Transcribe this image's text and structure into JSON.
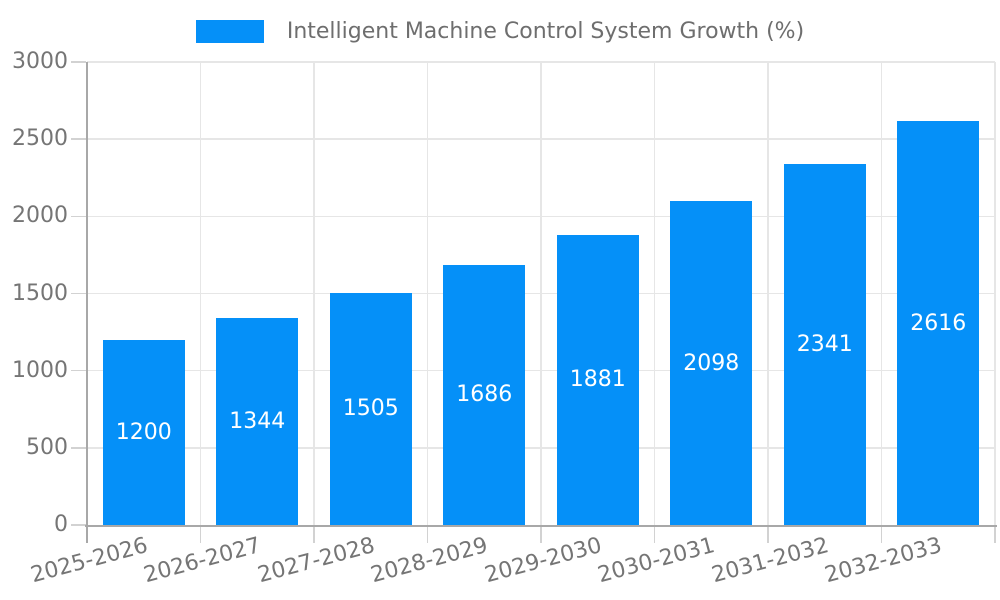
{
  "legend": {
    "label": "Intelligent Machine Control System Growth (%)"
  },
  "chart_data": {
    "type": "bar",
    "title": "Intelligent Machine Control System Growth (%)",
    "categories": [
      "2025-2026",
      "2026-2027",
      "2027-2028",
      "2028-2029",
      "2029-2030",
      "2030-2031",
      "2031-2032",
      "2032-2033"
    ],
    "values": [
      1200,
      1344,
      1505,
      1686,
      1881,
      2098,
      2341,
      2616
    ],
    "xlabel": "",
    "ylabel": "",
    "ylim": [
      0,
      3000
    ],
    "yticks": [
      0,
      500,
      1000,
      1500,
      2000,
      2500,
      3000
    ],
    "grid": true,
    "legend_position": "top",
    "bar_color": "#0590F8",
    "value_label_color": "#ffffff",
    "axis_label_color": "#757575",
    "grid_color": "#e6e6e6",
    "tick_color": "#d2d2d2",
    "axis_line_color": "#a8a8a8"
  }
}
